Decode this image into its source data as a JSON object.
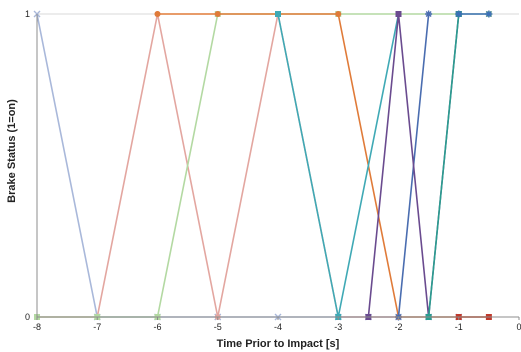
{
  "chart_data": {
    "type": "line",
    "title": "",
    "xlabel": "Time Prior to Impact [s]",
    "ylabel": "Brake Status (1=on)",
    "xlim": [
      -8,
      0
    ],
    "ylim": [
      0,
      1
    ],
    "xticks": [
      "-8",
      "-7",
      "-6",
      "-5",
      "-4",
      "-3",
      "-2",
      "-1",
      "0"
    ],
    "yticks": [
      "0",
      "1"
    ],
    "grid": "horizontal",
    "legend": "none",
    "series": [
      {
        "color": "#a9b8da",
        "marker": "x",
        "x": [
          -8,
          -7,
          -6,
          -5,
          -4,
          -3,
          -2.5,
          -2,
          -1.5,
          -1
        ],
        "y": [
          1,
          0,
          0,
          0,
          0,
          0,
          0,
          0,
          0,
          0
        ]
      },
      {
        "color": "#e3a6a0",
        "marker": "circle",
        "x": [
          -8,
          -7,
          -6,
          -5,
          -4,
          -3,
          -2
        ],
        "y": [
          0,
          0,
          1,
          0,
          1,
          0,
          0
        ]
      },
      {
        "color": "#b3d9a2",
        "marker": "square",
        "x": [
          -8,
          -7,
          -6,
          -5,
          -4,
          -3,
          -2,
          -1,
          -0.5
        ],
        "y": [
          0,
          0,
          0,
          1,
          1,
          1,
          1,
          1,
          1
        ]
      },
      {
        "color": "#e07b39",
        "marker": "circle",
        "x": [
          -6,
          -5,
          -4,
          -3,
          -2,
          -1.5,
          -1,
          -0.5
        ],
        "y": [
          1,
          1,
          1,
          1,
          0,
          0,
          0,
          0
        ]
      },
      {
        "color": "#3fa9b5",
        "marker": "square",
        "x": [
          -4,
          -3,
          -2
        ],
        "y": [
          1,
          0,
          1
        ]
      },
      {
        "color": "#4a6db0",
        "marker": "star",
        "x": [
          -2,
          -1.5
        ],
        "y": [
          0,
          1
        ]
      },
      {
        "color": "#6a4b8f",
        "marker": "square",
        "x": [
          -2.5,
          -2,
          -1.5,
          -1
        ],
        "y": [
          0,
          1,
          0,
          1
        ]
      },
      {
        "color": "#2a9d8f",
        "marker": "square",
        "x": [
          -1.5,
          -1
        ],
        "y": [
          0,
          1
        ]
      },
      {
        "color": "#c0392b",
        "marker": "square",
        "x": [
          -1,
          -0.5
        ],
        "y": [
          0,
          0
        ]
      },
      {
        "color": "#3b6fb6",
        "marker": "star",
        "x": [
          -1,
          -0.5
        ],
        "y": [
          1,
          1
        ]
      }
    ]
  }
}
